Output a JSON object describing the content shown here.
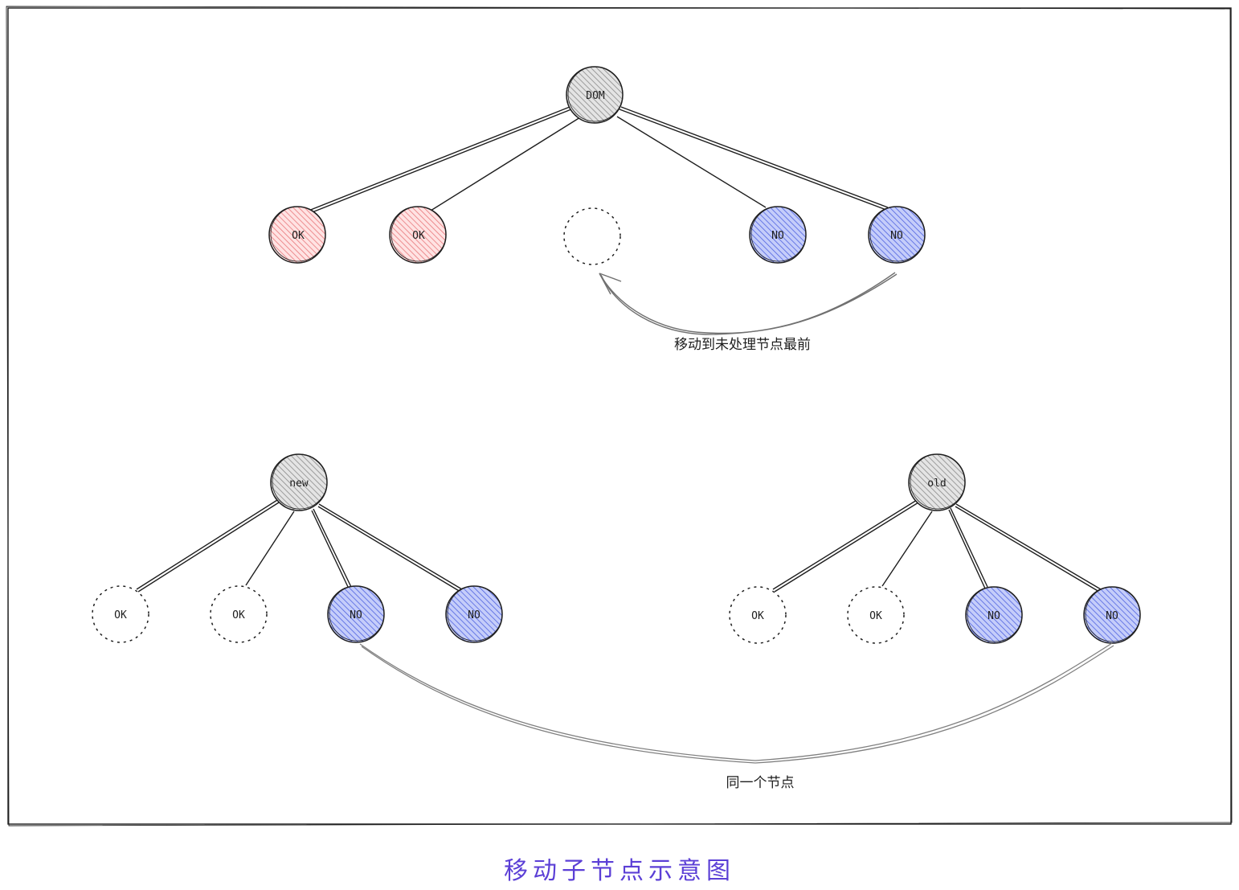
{
  "caption": "移动子节点示意图",
  "colors": {
    "ok_fill": "#ffc9c9",
    "no_fill": "#a5b4fc",
    "root_fill": "#c8c8c8",
    "caption": "#5b3fd6"
  },
  "top_tree": {
    "root": "DOM",
    "children": [
      "OK",
      "OK",
      "",
      "NO",
      "NO"
    ],
    "annotation": "移动到未处理节点最前"
  },
  "new_tree": {
    "root": "new",
    "children": [
      "OK",
      "OK",
      "NO",
      "NO"
    ]
  },
  "old_tree": {
    "root": "old",
    "children": [
      "OK",
      "OK",
      "NO",
      "NO"
    ]
  },
  "bottom_annotation": "同一个节点"
}
